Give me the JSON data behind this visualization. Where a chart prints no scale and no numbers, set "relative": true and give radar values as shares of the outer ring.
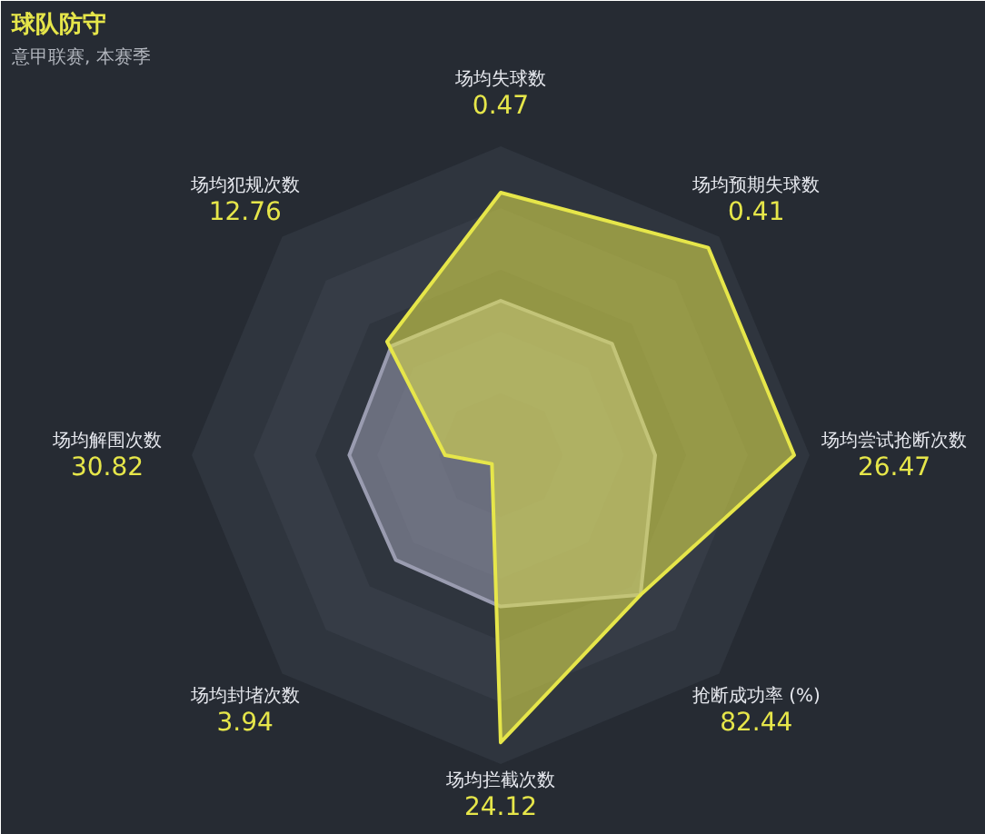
{
  "chart_data": {
    "type": "radar",
    "title": "球队防守",
    "subtitle": "意甲联赛, 本赛季",
    "relative": true,
    "categories": [
      "场均失球数",
      "场均预期失球数",
      "场均尝试抢断次数",
      "抢断成功率 (%)",
      "场均拦截次数",
      "场均封堵次数",
      "场均解围次数",
      "场均犯规次数"
    ],
    "series": [
      {
        "color": "#9a9cb0",
        "values": [
          0.5,
          0.51,
          0.5,
          0.64,
          0.49,
          0.48,
          0.49,
          0.5
        ]
      },
      {
        "color": "#e6e64a",
        "values": [
          0.85,
          0.95,
          0.95,
          0.64,
          0.93,
          0.04,
          0.18,
          0.52
        ]
      }
    ],
    "annotations": [
      "0.47",
      "0.41",
      "26.47",
      "82.44",
      "24.12",
      "3.94",
      "30.82",
      "12.76"
    ]
  }
}
